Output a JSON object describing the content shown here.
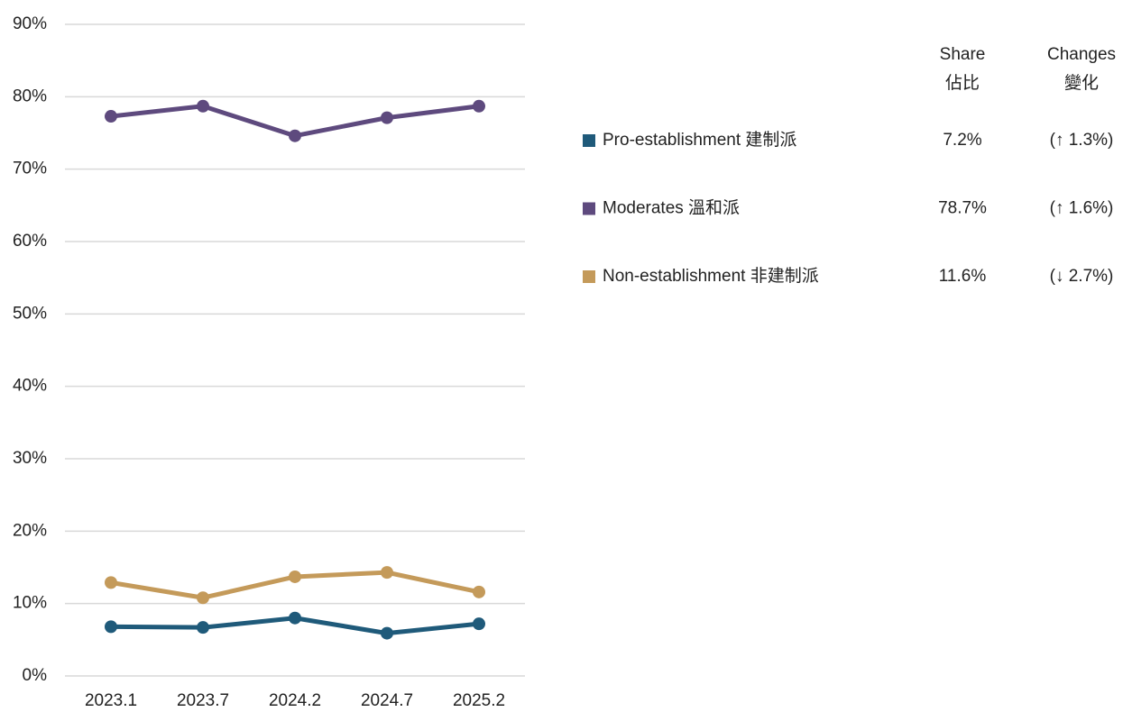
{
  "chart_data": {
    "type": "line",
    "categories": [
      "2023.1",
      "2023.7",
      "2024.2",
      "2024.7",
      "2025.2"
    ],
    "series": [
      {
        "name": "Pro-establishment 建制派",
        "color": "#1f5a7a",
        "values": [
          6.8,
          6.7,
          8.0,
          5.9,
          7.2
        ]
      },
      {
        "name": "Moderates 溫和派",
        "color": "#5e4a7e",
        "values": [
          77.3,
          78.7,
          74.6,
          77.1,
          78.7
        ]
      },
      {
        "name": "Non-establishment 非建制派",
        "color": "#c49a5a",
        "values": [
          12.9,
          10.8,
          13.7,
          14.3,
          11.6
        ]
      }
    ],
    "ylim": [
      0,
      90
    ],
    "yticks": [
      {
        "value": 0,
        "label": "0%"
      },
      {
        "value": 10,
        "label": "10%"
      },
      {
        "value": 20,
        "label": "20%"
      },
      {
        "value": 30,
        "label": "30%"
      },
      {
        "value": 40,
        "label": "40%"
      },
      {
        "value": 50,
        "label": "50%"
      },
      {
        "value": 60,
        "label": "60%"
      },
      {
        "value": 70,
        "label": "70%"
      },
      {
        "value": 80,
        "label": "80%"
      },
      {
        "value": 90,
        "label": "90%"
      }
    ],
    "grid": true
  },
  "table": {
    "headers": [
      [
        "Share",
        "佔比"
      ],
      [
        "Changes",
        "變化"
      ]
    ],
    "rows": [
      {
        "share": "7.2%",
        "change": "(↑ 1.3%)",
        "change_color": "#6a9a7c"
      },
      {
        "share": "78.7%",
        "change": "(↑ 1.6%)",
        "change_color": "#6a9a7c"
      },
      {
        "share": "11.6%",
        "change": "(↓ 2.7%)",
        "change_color": "#a3394a"
      }
    ]
  }
}
